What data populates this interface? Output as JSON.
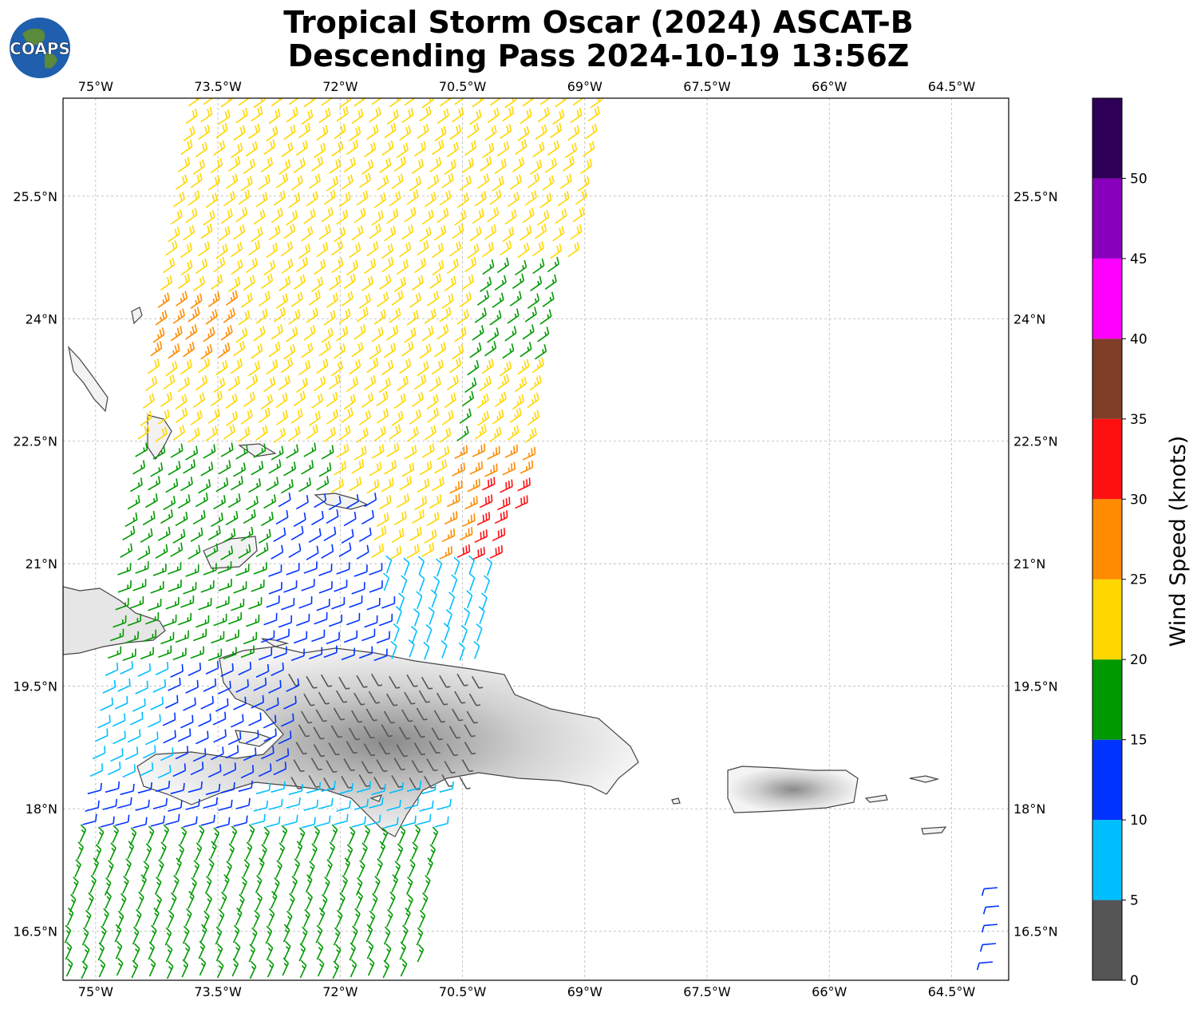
{
  "title": {
    "line1": "Tropical Storm Oscar (2024) ASCAT-B",
    "line2": "Descending Pass 2024-10-19 13:56Z"
  },
  "logo": {
    "text": "COAPS",
    "icon": "globe-logo-icon"
  },
  "map": {
    "type": "wind-barb map",
    "lon_ticks": [
      "75°W",
      "73.5°W",
      "72°W",
      "70.5°W",
      "69°W",
      "67.5°W",
      "66°W",
      "64.5°W"
    ],
    "lon_values": [
      -75,
      -73.5,
      -72,
      -70.5,
      -69,
      -67.5,
      -66,
      -64.5
    ],
    "lat_ticks": [
      "25.5°N",
      "24°N",
      "22.5°N",
      "21°N",
      "19.5°N",
      "18°N",
      "16.5°N"
    ],
    "lat_values": [
      25.5,
      24,
      22.5,
      21,
      19.5,
      18,
      16.5
    ],
    "lon_range": [
      -75.4,
      -63.8
    ],
    "lat_range": [
      15.9,
      26.7
    ],
    "gridlines": true
  },
  "colorbar": {
    "title": "Wind Speed (knots)",
    "ticks": [
      "0",
      "5",
      "10",
      "15",
      "20",
      "25",
      "30",
      "35",
      "40",
      "45",
      "50"
    ],
    "bins": [
      {
        "from": 0,
        "to": 5,
        "color": "#555555"
      },
      {
        "from": 5,
        "to": 10,
        "color": "#00bfff"
      },
      {
        "from": 10,
        "to": 15,
        "color": "#0033ff"
      },
      {
        "from": 15,
        "to": 20,
        "color": "#009900"
      },
      {
        "from": 20,
        "to": 25,
        "color": "#ffd700"
      },
      {
        "from": 25,
        "to": 30,
        "color": "#ff8c00"
      },
      {
        "from": 30,
        "to": 35,
        "color": "#ff1010"
      },
      {
        "from": 35,
        "to": 40,
        "color": "#803d28"
      },
      {
        "from": 40,
        "to": 45,
        "color": "#ff00ff"
      },
      {
        "from": 45,
        "to": 50,
        "color": "#8800bb"
      },
      {
        "from": 50,
        "to": 55,
        "color": "#2e0057"
      }
    ]
  }
}
